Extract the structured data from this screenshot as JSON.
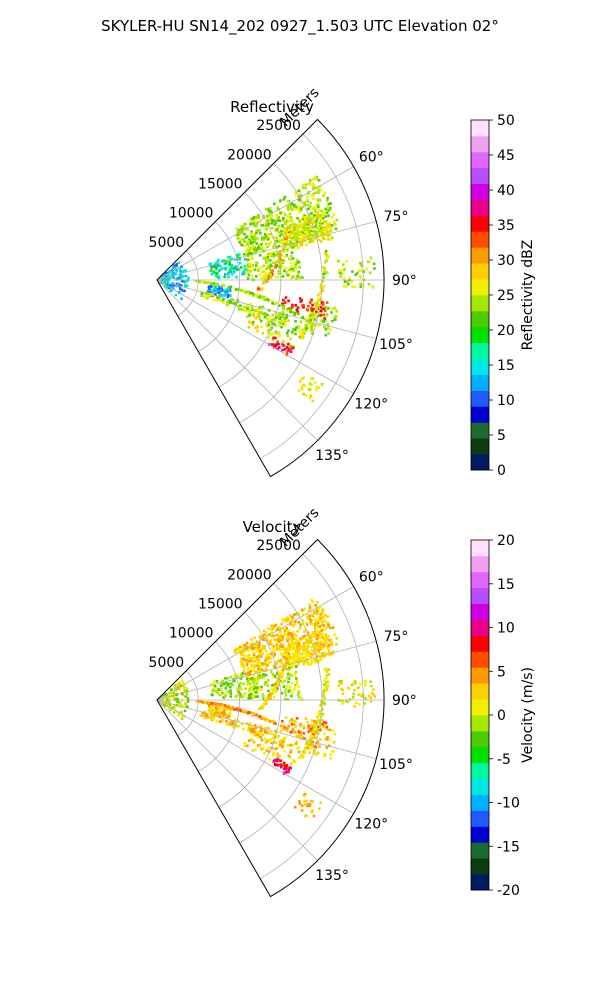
{
  "suptitle": "SKYLER-HU  SN14_202  0927_1.503 UTC Elevation 02°",
  "chart_data": [
    {
      "type": "heatmap",
      "projection": "polar-sector",
      "title": "Reflectivity",
      "range_label": "Meters",
      "range_ticks": [
        "5000",
        "10000",
        "15000",
        "20000",
        "25000"
      ],
      "range_tick_values": [
        5000,
        10000,
        15000,
        20000,
        25000
      ],
      "range_max": 27500,
      "azimuth_ticks": [
        "60°",
        "75°",
        "90°",
        "105°",
        "120°",
        "135°"
      ],
      "azimuth_tick_values": [
        60,
        75,
        90,
        105,
        120,
        135
      ],
      "azimuth_range": [
        45,
        150
      ],
      "grid": true,
      "colorbar": {
        "label": "Reflectivity dBZ",
        "range": [
          0,
          50
        ],
        "ticks": [
          "0",
          "5",
          "10",
          "15",
          "20",
          "25",
          "30",
          "35",
          "40",
          "45",
          "50"
        ],
        "colors": [
          "#001a66",
          "#0b3a14",
          "#1b6b2e",
          "#0000cc",
          "#1f5cff",
          "#00b0ff",
          "#00e6e6",
          "#00f5a0",
          "#00e000",
          "#4ccc00",
          "#a6e600",
          "#f0f000",
          "#ffd000",
          "#ff9900",
          "#ff4d00",
          "#ff0000",
          "#e6008a",
          "#d000e6",
          "#b84dff",
          "#e066ff",
          "#f0a0f0",
          "#ffe0ff"
        ]
      }
    },
    {
      "type": "heatmap",
      "projection": "polar-sector",
      "title": "Velocity",
      "range_label": "Meters",
      "range_ticks": [
        "5000",
        "10000",
        "15000",
        "20000",
        "25000"
      ],
      "range_tick_values": [
        5000,
        10000,
        15000,
        20000,
        25000
      ],
      "range_max": 27500,
      "azimuth_ticks": [
        "60°",
        "75°",
        "90°",
        "105°",
        "120°",
        "135°"
      ],
      "azimuth_tick_values": [
        60,
        75,
        90,
        105,
        120,
        135
      ],
      "azimuth_range": [
        45,
        150
      ],
      "grid": true,
      "colorbar": {
        "label": "Velocity (m/s)",
        "range": [
          -20,
          20
        ],
        "ticks": [
          "-20",
          "-15",
          "-10",
          "-5",
          "0",
          "5",
          "10",
          "15",
          "20"
        ],
        "colors": [
          "#001a66",
          "#0b3a14",
          "#1b6b2e",
          "#0000cc",
          "#1f5cff",
          "#00b0ff",
          "#00e6e6",
          "#00f5a0",
          "#00e000",
          "#4ccc00",
          "#a6e600",
          "#f0f000",
          "#ffd000",
          "#ff9900",
          "#ff4d00",
          "#ff0000",
          "#e6008a",
          "#d000e6",
          "#b84dff",
          "#e066ff",
          "#f0a0f0",
          "#ffe0ff"
        ]
      }
    }
  ]
}
